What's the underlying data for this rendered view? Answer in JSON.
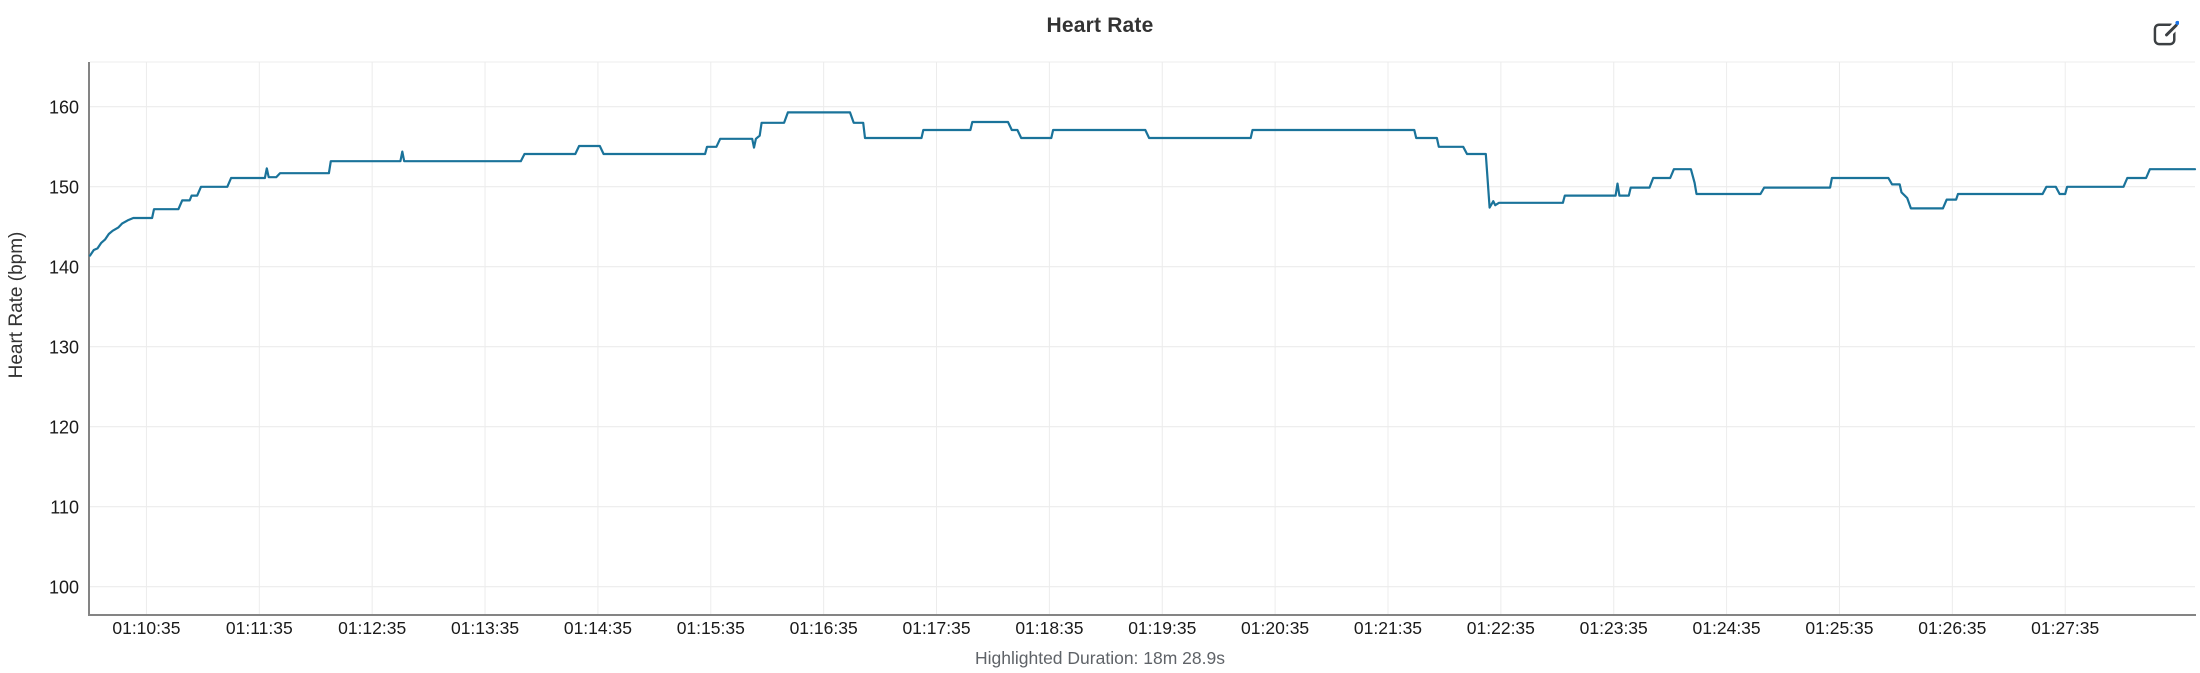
{
  "header": {
    "title": "Heart Rate",
    "edit_icon": "edit-pencil-square-icon"
  },
  "footer": {
    "highlighted_duration": "Highlighted Duration: 18m 28.9s"
  },
  "colors": {
    "line": "#1a739a",
    "grid": "#e9e9e9",
    "grid_vertical": "#ececec",
    "axis": "#848484",
    "tick_label": "#1a1a1a",
    "title": "#333333",
    "subtitle": "#5f6368",
    "icon_dark": "#3c4043",
    "icon_accent": "#1a73e8",
    "background": "#ffffff"
  },
  "chart_data": {
    "type": "line",
    "title": "Heart Rate",
    "xlabel": "",
    "ylabel": "Heart Rate (bpm)",
    "footer": "Highlighted Duration: 18m 28.9s",
    "legend": null,
    "grid": true,
    "y_ticks": [
      100,
      110,
      120,
      130,
      140,
      150,
      160
    ],
    "y_domain": [
      96.6,
      165.6
    ],
    "x_ticks": [
      "01:10:35",
      "01:11:35",
      "01:12:35",
      "01:13:35",
      "01:14:35",
      "01:15:35",
      "01:16:35",
      "01:17:35",
      "01:18:35",
      "01:19:35",
      "01:20:35",
      "01:21:35",
      "01:22:35",
      "01:23:35",
      "01:24:35",
      "01:25:35",
      "01:26:35",
      "01:27:35"
    ],
    "x_domain": [
      "01:10:05",
      "01:28:44"
    ],
    "series_name": "Heart Rate (bpm)",
    "points": [
      [
        "01:10:05",
        141.4
      ],
      [
        "01:10:07",
        142.1
      ],
      [
        "01:10:09",
        142.3
      ],
      [
        "01:10:11",
        143.0
      ],
      [
        "01:10:13",
        143.4
      ],
      [
        "01:10:15",
        144.1
      ],
      [
        "01:10:17",
        144.5
      ],
      [
        "01:10:20",
        144.9
      ],
      [
        "01:10:22",
        145.4
      ],
      [
        "01:10:25",
        145.8
      ],
      [
        "01:10:28",
        146.1
      ],
      [
        "01:10:38",
        146.1
      ],
      [
        "01:10:39",
        147.2
      ],
      [
        "01:10:52",
        147.2
      ],
      [
        "01:10:54",
        148.3
      ],
      [
        "01:10:58",
        148.3
      ],
      [
        "01:10:59",
        148.9
      ],
      [
        "01:11:02",
        148.9
      ],
      [
        "01:11:04",
        150.0
      ],
      [
        "01:11:18",
        150.0
      ],
      [
        "01:11:20",
        151.1
      ],
      [
        "01:11:38",
        151.1
      ],
      [
        "01:11:39",
        152.3
      ],
      [
        "01:11:40",
        151.2
      ],
      [
        "01:11:44",
        151.2
      ],
      [
        "01:11:46",
        151.7
      ],
      [
        "01:12:12",
        151.7
      ],
      [
        "01:12:13",
        153.2
      ],
      [
        "01:12:50",
        153.2
      ],
      [
        "01:12:51",
        154.4
      ],
      [
        "01:12:52",
        153.2
      ],
      [
        "01:13:54",
        153.2
      ],
      [
        "01:13:56",
        154.1
      ],
      [
        "01:14:23",
        154.1
      ],
      [
        "01:14:25",
        155.1
      ],
      [
        "01:14:36",
        155.1
      ],
      [
        "01:14:38",
        154.1
      ],
      [
        "01:15:32",
        154.1
      ],
      [
        "01:15:33",
        155.0
      ],
      [
        "01:15:38",
        155.0
      ],
      [
        "01:15:40",
        156.0
      ],
      [
        "01:15:57",
        156.0
      ],
      [
        "01:15:58",
        154.9
      ],
      [
        "01:15:59",
        156.0
      ],
      [
        "01:16:01",
        156.4
      ],
      [
        "01:16:02",
        158.0
      ],
      [
        "01:16:14",
        158.0
      ],
      [
        "01:16:16",
        159.3
      ],
      [
        "01:16:49",
        159.3
      ],
      [
        "01:16:51",
        158.0
      ],
      [
        "01:16:56",
        158.0
      ],
      [
        "01:16:57",
        156.1
      ],
      [
        "01:17:27",
        156.1
      ],
      [
        "01:17:28",
        157.1
      ],
      [
        "01:17:53",
        157.1
      ],
      [
        "01:17:54",
        158.1
      ],
      [
        "01:18:13",
        158.1
      ],
      [
        "01:18:15",
        157.1
      ],
      [
        "01:18:18",
        157.1
      ],
      [
        "01:18:20",
        156.1
      ],
      [
        "01:18:36",
        156.1
      ],
      [
        "01:18:37",
        157.1
      ],
      [
        "01:19:26",
        157.1
      ],
      [
        "01:19:28",
        156.1
      ],
      [
        "01:20:22",
        156.1
      ],
      [
        "01:20:23",
        157.1
      ],
      [
        "01:21:49",
        157.1
      ],
      [
        "01:21:50",
        156.1
      ],
      [
        "01:22:01",
        156.1
      ],
      [
        "01:22:02",
        155.0
      ],
      [
        "01:22:15",
        155.0
      ],
      [
        "01:22:17",
        154.1
      ],
      [
        "01:22:27",
        154.1
      ],
      [
        "01:22:29",
        147.4
      ],
      [
        "01:22:31",
        148.2
      ],
      [
        "01:22:32",
        147.7
      ],
      [
        "01:22:34",
        148.0
      ],
      [
        "01:23:08",
        148.0
      ],
      [
        "01:23:09",
        148.9
      ],
      [
        "01:23:36",
        148.9
      ],
      [
        "01:23:37",
        150.4
      ],
      [
        "01:23:38",
        148.9
      ],
      [
        "01:23:43",
        148.9
      ],
      [
        "01:23:44",
        149.9
      ],
      [
        "01:23:54",
        149.9
      ],
      [
        "01:23:56",
        151.1
      ],
      [
        "01:24:05",
        151.1
      ],
      [
        "01:24:07",
        152.2
      ],
      [
        "01:24:16",
        152.2
      ],
      [
        "01:24:18",
        150.5
      ],
      [
        "01:24:19",
        149.1
      ],
      [
        "01:24:53",
        149.1
      ],
      [
        "01:24:55",
        149.9
      ],
      [
        "01:25:30",
        149.9
      ],
      [
        "01:25:31",
        151.1
      ],
      [
        "01:26:01",
        151.1
      ],
      [
        "01:26:03",
        150.3
      ],
      [
        "01:26:07",
        150.3
      ],
      [
        "01:26:08",
        149.3
      ],
      [
        "01:26:11",
        148.6
      ],
      [
        "01:26:13",
        147.3
      ],
      [
        "01:26:30",
        147.3
      ],
      [
        "01:26:32",
        148.4
      ],
      [
        "01:26:37",
        148.4
      ],
      [
        "01:26:38",
        149.1
      ],
      [
        "01:27:23",
        149.1
      ],
      [
        "01:27:25",
        150.0
      ],
      [
        "01:27:30",
        150.0
      ],
      [
        "01:27:32",
        149.1
      ],
      [
        "01:27:35",
        149.1
      ],
      [
        "01:27:36",
        150.0
      ],
      [
        "01:28:06",
        150.0
      ],
      [
        "01:28:08",
        151.1
      ],
      [
        "01:28:18",
        151.1
      ],
      [
        "01:28:20",
        152.2
      ],
      [
        "01:28:44",
        152.2
      ]
    ]
  }
}
